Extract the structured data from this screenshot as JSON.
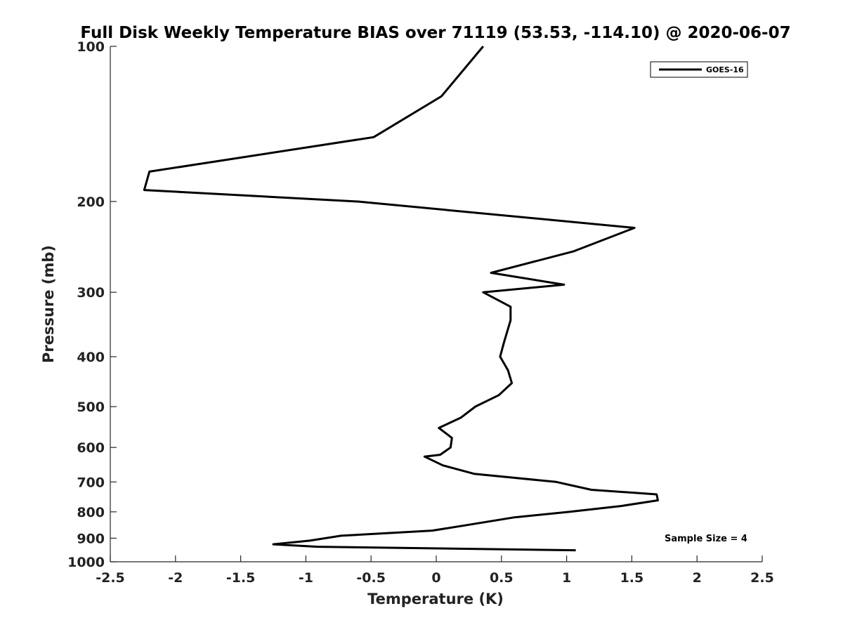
{
  "chart_data": {
    "type": "line",
    "title": "Full Disk Weekly Temperature BIAS over 71119 (53.53, -114.10) @ 2020-06-07",
    "xlabel": "Temperature (K)",
    "ylabel": "Pressure (mb)",
    "xlim": [
      -2.5,
      2.5
    ],
    "ylim": [
      100,
      1000
    ],
    "y_scale": "log",
    "y_reversed": true,
    "x_ticks": [
      -2.5,
      -2,
      -1.5,
      -1,
      -0.5,
      0,
      0.5,
      1,
      1.5,
      2,
      2.5
    ],
    "x_tick_labels": [
      "-2.5",
      "-2",
      "-1.5",
      "-1",
      "-0.5",
      "0",
      "0.5",
      "1",
      "1.5",
      "2",
      "2.5"
    ],
    "y_ticks": [
      100,
      200,
      300,
      400,
      500,
      600,
      700,
      800,
      900,
      1000
    ],
    "y_tick_labels": [
      "100",
      "200",
      "300",
      "400",
      "500",
      "600",
      "700",
      "800",
      "900",
      "1000"
    ],
    "grid": false,
    "legend": {
      "position": "top-right"
    },
    "annotation": "Sample Size = 4",
    "series": [
      {
        "name": "GOES-16",
        "color": "#000000",
        "x": [
          0.36,
          0.04,
          -0.48,
          -2.2,
          -2.24,
          -0.6,
          1.52,
          1.05,
          0.42,
          0.98,
          0.36,
          0.57,
          0.57,
          0.52,
          0.49,
          0.55,
          0.58,
          0.48,
          0.3,
          0.19,
          0.02,
          0.12,
          0.11,
          0.03,
          -0.09,
          0.05,
          0.29,
          0.92,
          1.19,
          1.69,
          1.7,
          1.41,
          1.02,
          0.6,
          0.22,
          -0.03,
          -0.73,
          -0.97,
          -1.25,
          -0.91,
          1.07
        ],
        "y": [
          100,
          125,
          150,
          175,
          190,
          200,
          225,
          250,
          275,
          290,
          300,
          320,
          340,
          375,
          400,
          425,
          450,
          475,
          500,
          525,
          550,
          575,
          600,
          620,
          625,
          650,
          675,
          700,
          725,
          740,
          760,
          780,
          800,
          820,
          850,
          870,
          890,
          910,
          925,
          935,
          950
        ]
      }
    ]
  }
}
